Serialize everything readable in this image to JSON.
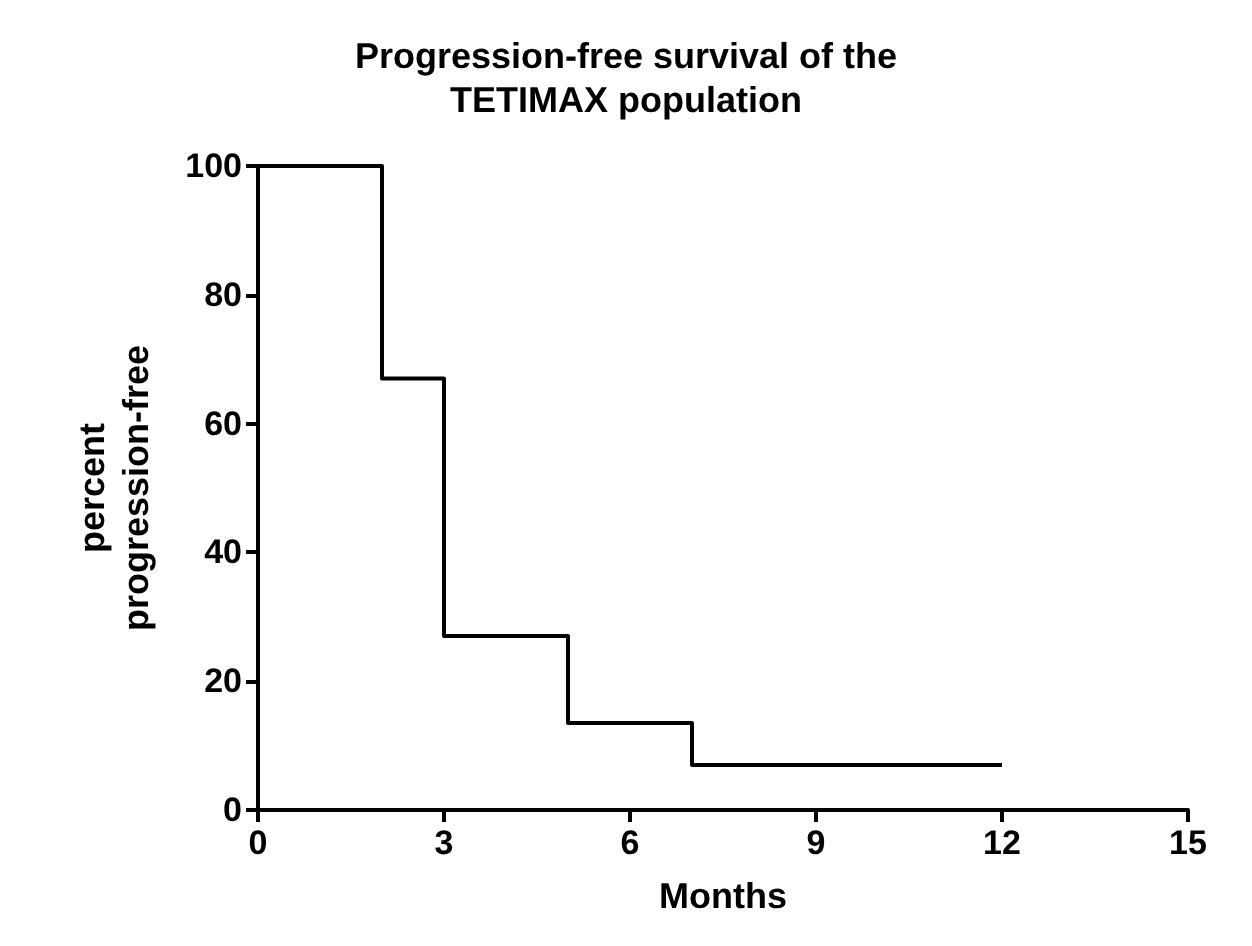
{
  "chart_data": {
    "type": "step",
    "title": "Progression-free survival of the\nTETIMAX population",
    "xlabel": "Months",
    "ylabel": "percent\nprogression-free",
    "x": [
      0,
      2,
      3,
      5,
      7,
      12
    ],
    "series": [
      {
        "color": "#000000",
        "values": [
          100,
          67,
          27,
          13.5,
          7,
          7
        ]
      }
    ],
    "xlim": [
      0,
      15
    ],
    "xticks": [
      0,
      3,
      6,
      9,
      12,
      15
    ],
    "ylim": [
      0,
      100
    ],
    "yticks": [
      0,
      20,
      40,
      60,
      80,
      100
    ],
    "grid": false,
    "marker": "none",
    "line_style": "solid"
  }
}
